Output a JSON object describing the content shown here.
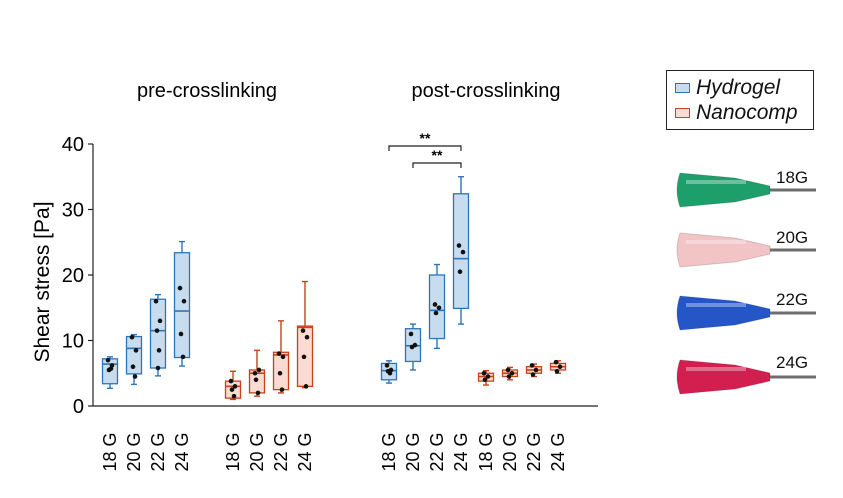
{
  "figure": {
    "panel_titles": [
      "pre-crosslinking",
      "post-crosslinking"
    ],
    "legend": [
      {
        "label": "Hydrogel",
        "fill": "#c7dcef",
        "stroke": "#2e75b6"
      },
      {
        "label": "Nanocomp",
        "fill": "#fadbd2",
        "stroke": "#c9421a"
      }
    ],
    "needles": [
      {
        "label": "18G",
        "hub_color": "#1e9e6a"
      },
      {
        "label": "20G",
        "hub_color": "#f2c4c6"
      },
      {
        "label": "22G",
        "hub_color": "#2456c8"
      },
      {
        "label": "24G",
        "hub_color": "#d21f4f"
      }
    ]
  },
  "chart_data": {
    "type": "box",
    "ylabel": "Shear stress [Pa]",
    "ylim": [
      0,
      40
    ],
    "yticks": [
      0,
      10,
      20,
      30,
      40
    ],
    "categories": [
      "18 G",
      "20 G",
      "22 G",
      "24 G"
    ],
    "groups": [
      {
        "panel": "pre-crosslinking",
        "series": "Hydrogel",
        "boxes": [
          {
            "min": 2.7,
            "q1": 3.4,
            "median": 6.4,
            "q3": 7.2,
            "max": 7.5,
            "points": [
              7.0,
              6.2,
              5.5,
              5.7
            ]
          },
          {
            "min": 3.3,
            "q1": 4.9,
            "median": 8.8,
            "q3": 10.6,
            "max": 10.9,
            "points": [
              10.5,
              8.5,
              6.0,
              4.5
            ]
          },
          {
            "min": 4.6,
            "q1": 5.8,
            "median": 11.5,
            "q3": 16.3,
            "max": 17.0,
            "points": [
              16.0,
              13.0,
              11.5,
              8.5,
              5.8
            ]
          },
          {
            "min": 6.1,
            "q1": 7.4,
            "median": 14.5,
            "q3": 23.4,
            "max": 25.1,
            "points": [
              18.0,
              16.0,
              11.0,
              7.5
            ]
          }
        ]
      },
      {
        "panel": "pre-crosslinking",
        "series": "Nanocomp",
        "boxes": [
          {
            "min": 1.0,
            "q1": 1.2,
            "median": 3.0,
            "q3": 3.8,
            "max": 5.3,
            "points": [
              3.8,
              3.0,
              2.5,
              1.5
            ]
          },
          {
            "min": 1.5,
            "q1": 2.0,
            "median": 5.0,
            "q3": 5.5,
            "max": 8.5,
            "points": [
              5.0,
              5.5,
              4.0,
              2.0
            ]
          },
          {
            "min": 2.0,
            "q1": 2.5,
            "median": 7.8,
            "q3": 8.2,
            "max": 13.0,
            "points": [
              8.0,
              7.5,
              5.0,
              2.5
            ]
          },
          {
            "min": 2.8,
            "q1": 3.0,
            "median": 12.0,
            "q3": 12.2,
            "max": 19.0,
            "points": [
              11.5,
              10.5,
              7.5,
              3.0
            ]
          }
        ]
      },
      {
        "panel": "post-crosslinking",
        "series": "Hydrogel",
        "boxes": [
          {
            "min": 3.5,
            "q1": 4.0,
            "median": 5.4,
            "q3": 6.5,
            "max": 6.9,
            "points": [
              6.2,
              5.5,
              5.3,
              5.0
            ]
          },
          {
            "min": 5.5,
            "q1": 6.8,
            "median": 9.2,
            "q3": 11.8,
            "max": 12.5,
            "points": [
              11.0,
              9.3,
              9.0
            ]
          },
          {
            "min": 8.8,
            "q1": 10.3,
            "median": 14.6,
            "q3": 20.0,
            "max": 21.6,
            "points": [
              15.5,
              15.0,
              14.2
            ]
          },
          {
            "min": 12.5,
            "q1": 14.9,
            "median": 22.5,
            "q3": 32.4,
            "max": 35.0,
            "points": [
              24.5,
              23.5,
              20.5
            ]
          }
        ]
      },
      {
        "panel": "post-crosslinking",
        "series": "Nanocomp",
        "boxes": [
          {
            "min": 3.2,
            "q1": 3.8,
            "median": 4.5,
            "q3": 5.0,
            "max": 5.4,
            "points": [
              5.0,
              4.5,
              4.0
            ]
          },
          {
            "min": 4.0,
            "q1": 4.5,
            "median": 5.0,
            "q3": 5.5,
            "max": 5.9,
            "points": [
              5.5,
              5.0,
              4.5
            ]
          },
          {
            "min": 4.5,
            "q1": 5.0,
            "median": 5.5,
            "q3": 6.0,
            "max": 6.4,
            "points": [
              6.2,
              5.5,
              4.8
            ]
          },
          {
            "min": 5.0,
            "q1": 5.5,
            "median": 6.0,
            "q3": 6.5,
            "max": 6.9,
            "points": [
              6.7,
              6.0,
              5.3
            ]
          }
        ]
      }
    ],
    "annotations": [
      {
        "text": "**",
        "from": "18 G",
        "to": "24 G",
        "panel": "post-crosslinking"
      },
      {
        "text": "**",
        "from": "20 G",
        "to": "24 G",
        "panel": "post-crosslinking"
      }
    ],
    "grid": false
  }
}
